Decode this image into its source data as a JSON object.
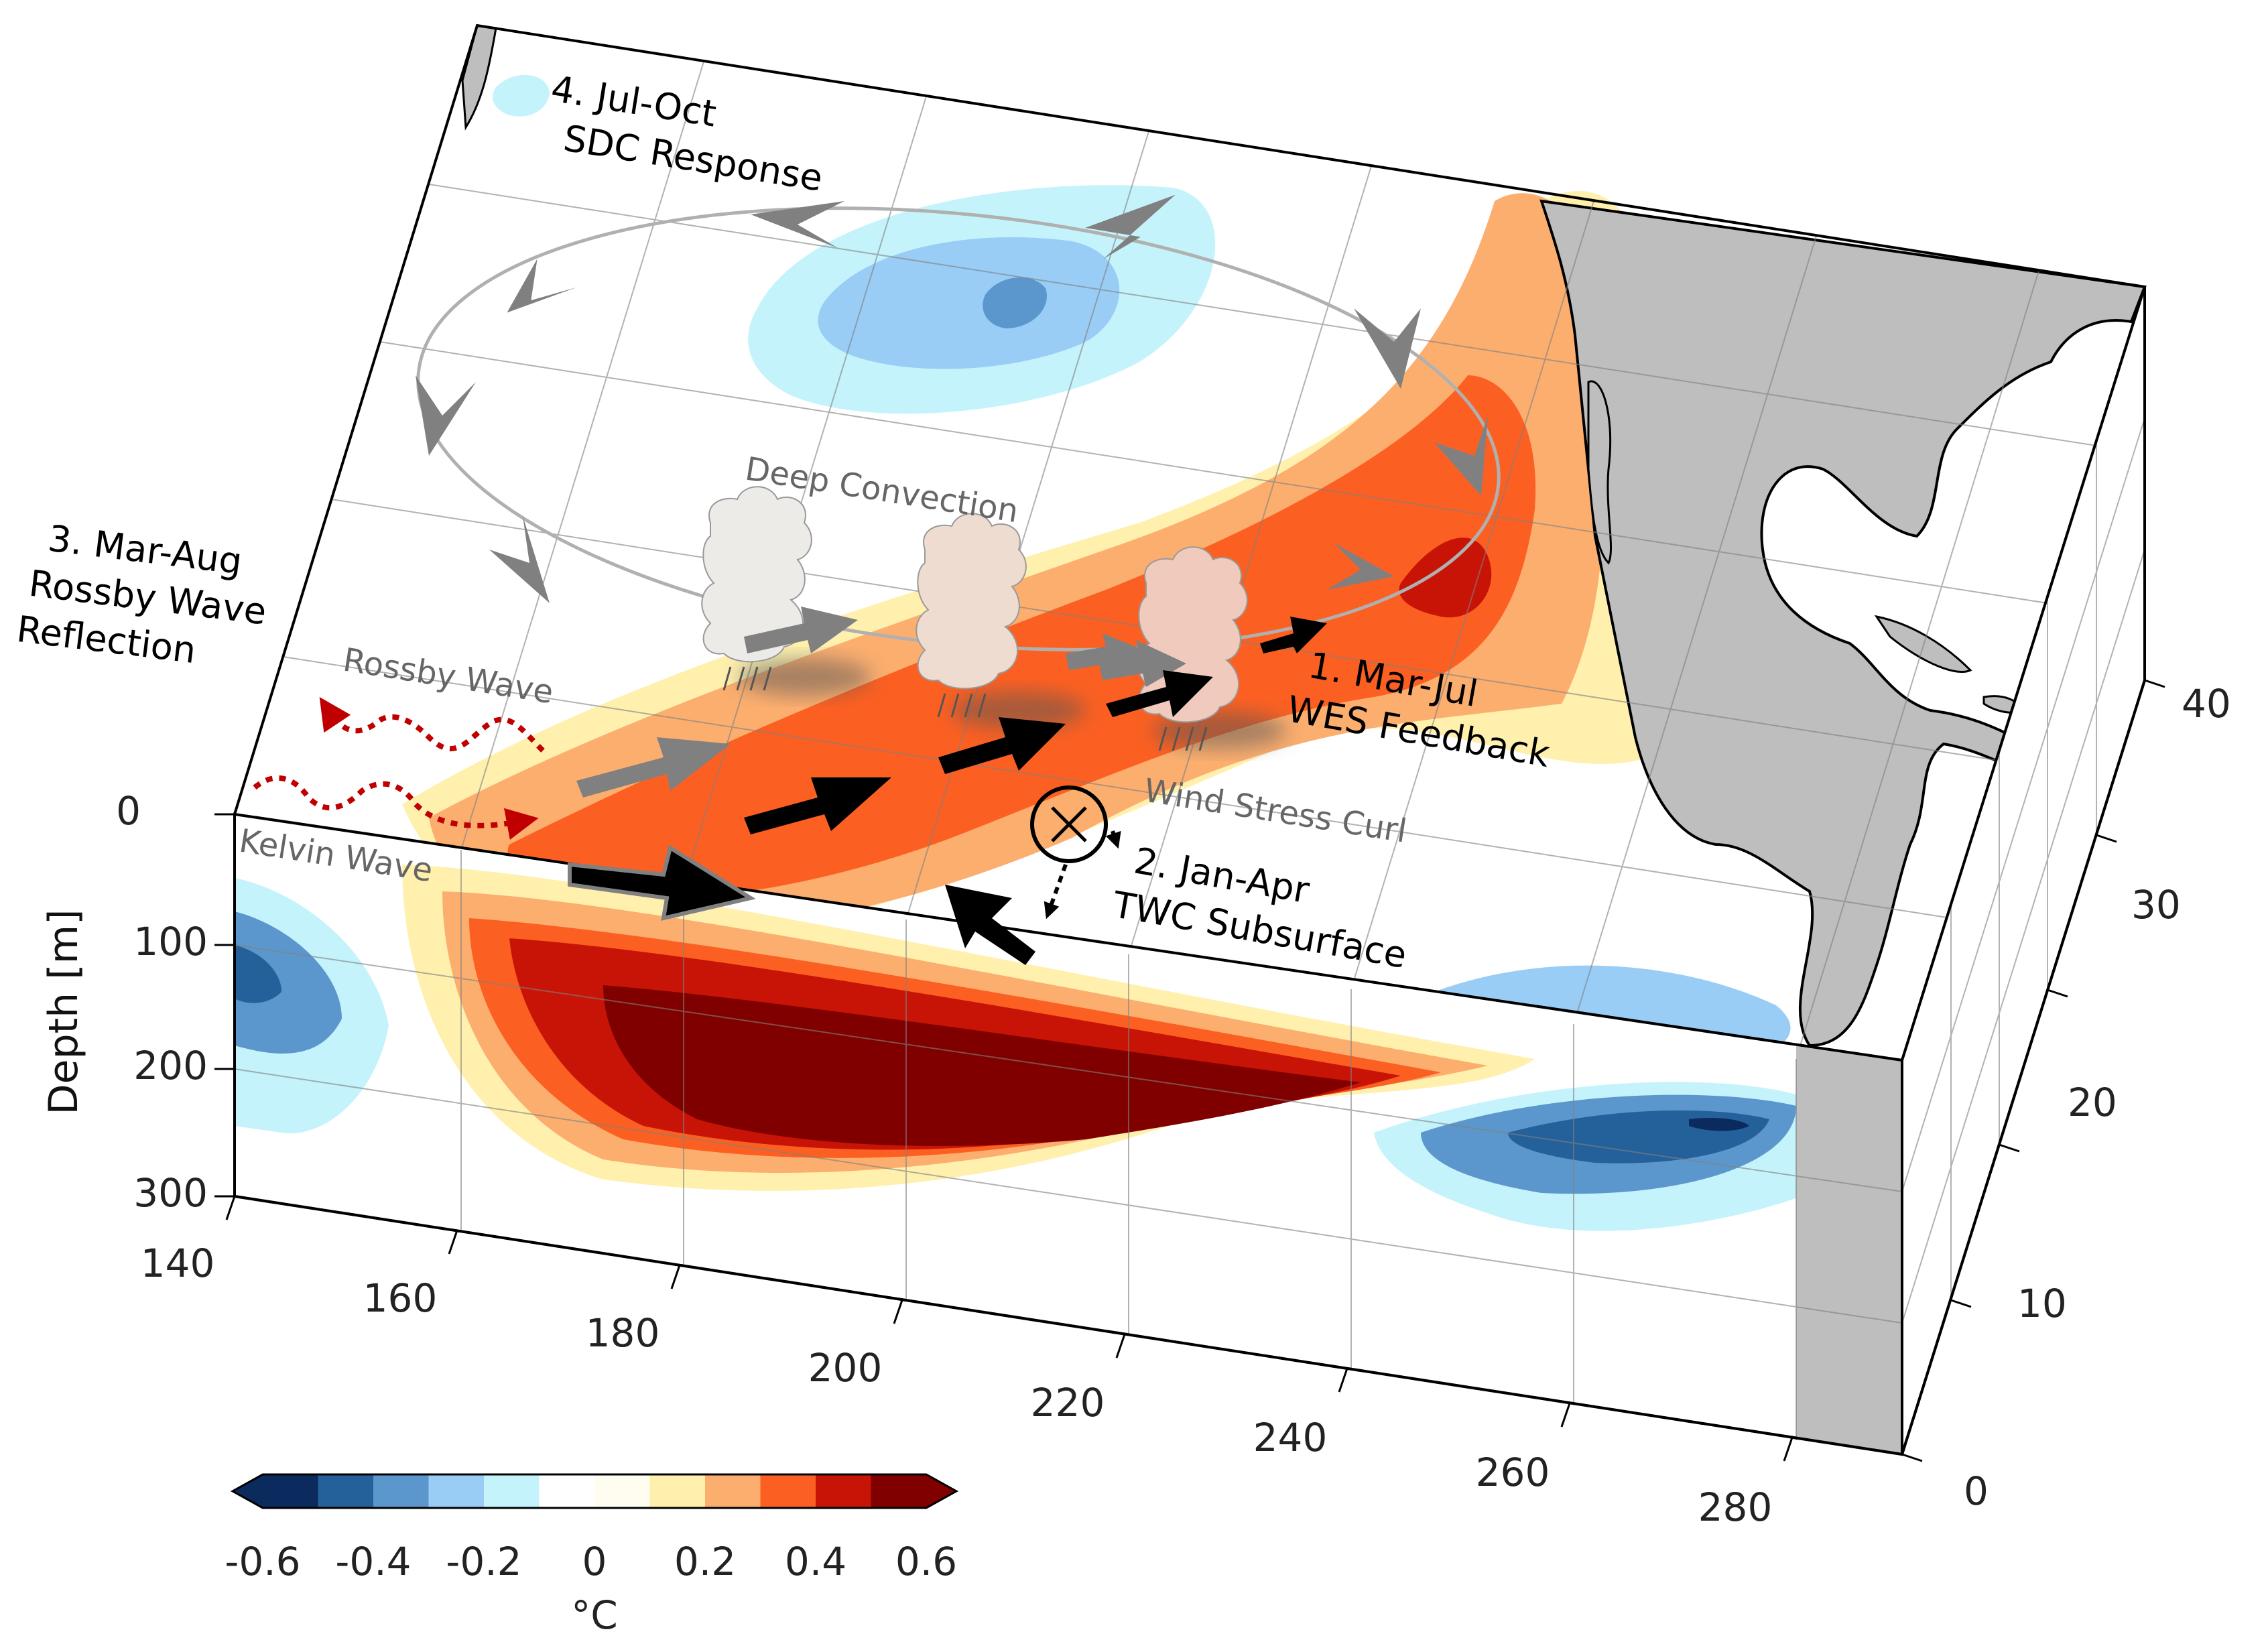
{
  "depth_axis": {
    "title": "Depth [m]",
    "ticks": [
      "0",
      "100",
      "200",
      "300"
    ]
  },
  "lon_axis": {
    "ticks": [
      "140",
      "160",
      "180",
      "200",
      "220",
      "240",
      "260",
      "280"
    ]
  },
  "lat_axis": {
    "ticks": [
      "0",
      "10",
      "20",
      "30",
      "40"
    ]
  },
  "labels": {
    "sdc_line1": "4. Jul-Oct",
    "sdc_line2": "SDC Response",
    "rossby_refl_line1": "3. Mar-Aug",
    "rossby_refl_line2": "Rossby Wave",
    "rossby_refl_line3": "Reflection",
    "wes_line1": "1. Mar-Jul",
    "wes_line2": "WES Feedback",
    "twc_line1": "2. Jan-Apr",
    "twc_line2": "TWC Subsurface",
    "deep_convection": "Deep Convection",
    "rossby_wave": "Rossby Wave",
    "kelvin_wave": "Kelvin Wave",
    "wind_stress_curl": "Wind Stress Curl"
  },
  "colorbar": {
    "unit": "°C",
    "ticks": [
      "-0.6",
      "-0.4",
      "-0.2",
      "0",
      "0.2",
      "0.4",
      "0.6"
    ],
    "colors": [
      "#0b2a5e",
      "#24609a",
      "#5b97cc",
      "#99cdf6",
      "#c4f3fb",
      "#ffffff",
      "#fffdf0",
      "#fff0ae",
      "#fcae6f",
      "#fb6022",
      "#c81406",
      "#800000"
    ]
  },
  "colors": {
    "land": "#bebebe",
    "arrow_black": "#000000",
    "arrow_grey": "#808080",
    "wave_red": "#c00000"
  }
}
